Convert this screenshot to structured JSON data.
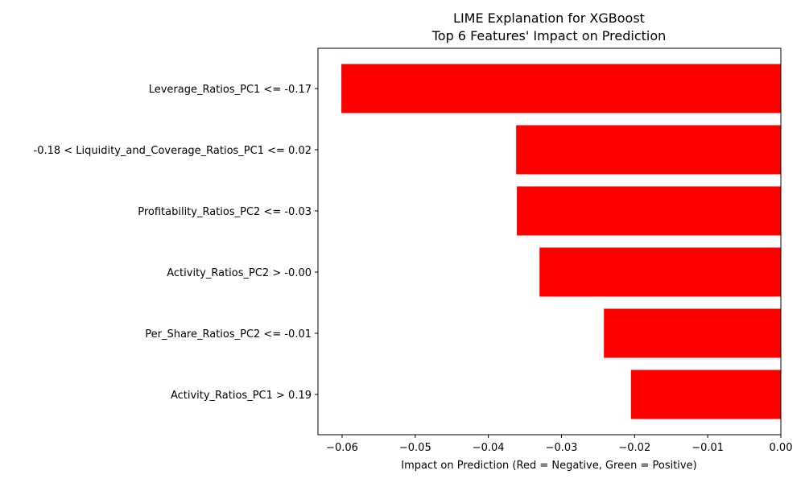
{
  "chart_data": {
    "type": "bar",
    "orientation": "horizontal",
    "title": "LIME Explanation for XGBoost",
    "subtitle": "Top 6 Features' Impact on Prediction",
    "xlabel": "Impact on Prediction (Red = Negative, Green = Positive)",
    "ylabel": "",
    "xlim": [
      -0.0633,
      0.0
    ],
    "xticks": [
      -0.06,
      -0.05,
      -0.04,
      -0.03,
      -0.02,
      -0.01,
      0.0
    ],
    "xtick_labels": [
      "−0.06",
      "−0.05",
      "−0.04",
      "−0.03",
      "−0.02",
      "−0.01",
      "0.00"
    ],
    "grid": false,
    "legend": "none",
    "categories": [
      "Leverage_Ratios_PC1 <= -0.17",
      "-0.18 < Liquidity_and_Coverage_Ratios_PC1 <= 0.02",
      "Profitability_Ratios_PC2 <= -0.03",
      "Activity_Ratios_PC2 > -0.00",
      "Per_Share_Ratios_PC2 <= -0.01",
      "Activity_Ratios_PC1 > 0.19"
    ],
    "values": [
      -0.0601,
      -0.0362,
      -0.0361,
      -0.033,
      -0.0242,
      -0.0205
    ],
    "colors": {
      "negative": "#ff0000",
      "positive": "#008000"
    }
  }
}
